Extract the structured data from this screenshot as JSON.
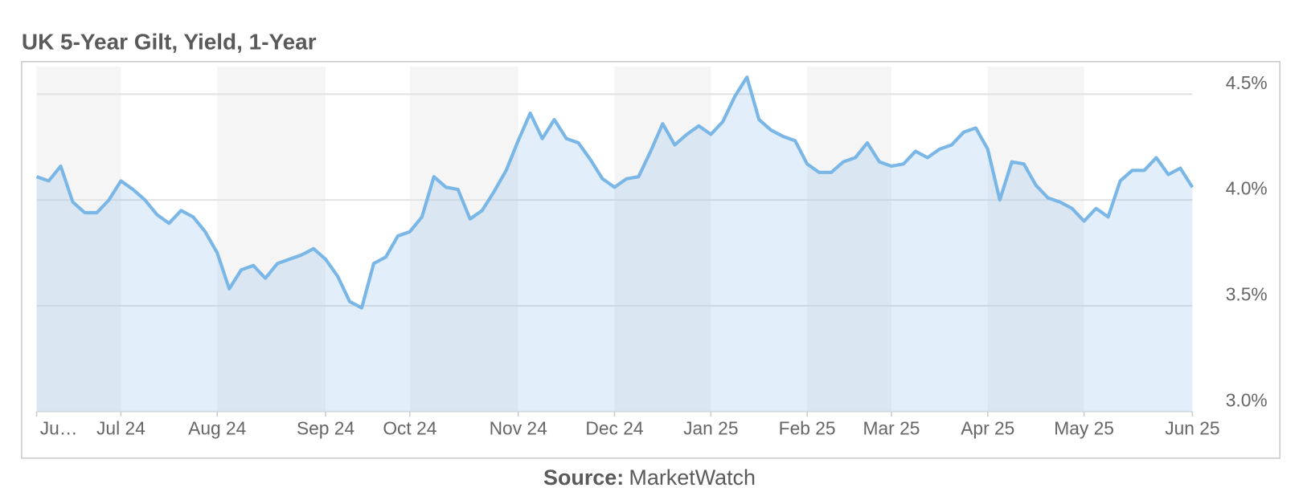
{
  "chart_data": {
    "type": "line",
    "title": "UK 5-Year Gilt, Yield, 1-Year",
    "source": {
      "label": "Source:",
      "name": "MarketWatch"
    },
    "categories": [
      "Ju…",
      null,
      null,
      null,
      null,
      null,
      null,
      "Jul 24",
      null,
      null,
      null,
      null,
      null,
      null,
      null,
      "Aug 24",
      null,
      null,
      null,
      null,
      null,
      null,
      null,
      null,
      "Sep 24",
      null,
      null,
      null,
      null,
      null,
      null,
      "Oct 24",
      null,
      null,
      null,
      null,
      null,
      null,
      null,
      null,
      "Nov 24",
      null,
      null,
      null,
      null,
      null,
      null,
      null,
      "Dec 24",
      null,
      null,
      null,
      null,
      null,
      null,
      null,
      "Jan 25",
      null,
      null,
      null,
      null,
      null,
      null,
      null,
      "Feb 25",
      null,
      null,
      null,
      null,
      null,
      null,
      "Mar 25",
      null,
      null,
      null,
      null,
      null,
      null,
      null,
      "Apr 25",
      null,
      null,
      null,
      null,
      null,
      null,
      null,
      "May 25",
      null,
      null,
      null,
      null,
      null,
      null,
      null,
      null,
      "Jun 25"
    ],
    "series": [
      {
        "name": "UK 5-Year Gilt",
        "color": "#7ab6e6",
        "values": [
          4.11,
          4.09,
          4.16,
          3.99,
          3.94,
          3.94,
          4.0,
          4.09,
          4.05,
          4.0,
          3.93,
          3.89,
          3.95,
          3.92,
          3.85,
          3.75,
          3.58,
          3.67,
          3.69,
          3.63,
          3.7,
          3.72,
          3.74,
          3.77,
          3.72,
          3.64,
          3.52,
          3.49,
          3.7,
          3.73,
          3.83,
          3.85,
          3.92,
          4.11,
          4.06,
          4.05,
          3.91,
          3.95,
          4.04,
          4.14,
          4.28,
          4.41,
          4.29,
          4.38,
          4.29,
          4.27,
          4.19,
          4.1,
          4.06,
          4.1,
          4.11,
          4.23,
          4.36,
          4.26,
          4.31,
          4.35,
          4.31,
          4.37,
          4.49,
          4.58,
          4.38,
          4.33,
          4.3,
          4.28,
          4.17,
          4.13,
          4.13,
          4.18,
          4.2,
          4.27,
          4.18,
          4.16,
          4.17,
          4.23,
          4.2,
          4.24,
          4.26,
          4.32,
          4.34,
          4.24,
          4.0,
          4.18,
          4.17,
          4.07,
          4.01,
          3.99,
          3.96,
          3.9,
          3.96,
          3.92,
          4.09,
          4.14,
          4.14,
          4.2,
          4.12,
          4.15,
          4.06
        ]
      }
    ],
    "ylim": [
      3.0,
      4.63
    ],
    "yticks": [
      {
        "value": 3.0,
        "label": "3.0%"
      },
      {
        "value": 3.5,
        "label": "3.5%"
      },
      {
        "value": 4.0,
        "label": "4.0%"
      },
      {
        "value": 4.5,
        "label": "4.5%"
      }
    ],
    "grid": true,
    "axis_side": "right"
  }
}
